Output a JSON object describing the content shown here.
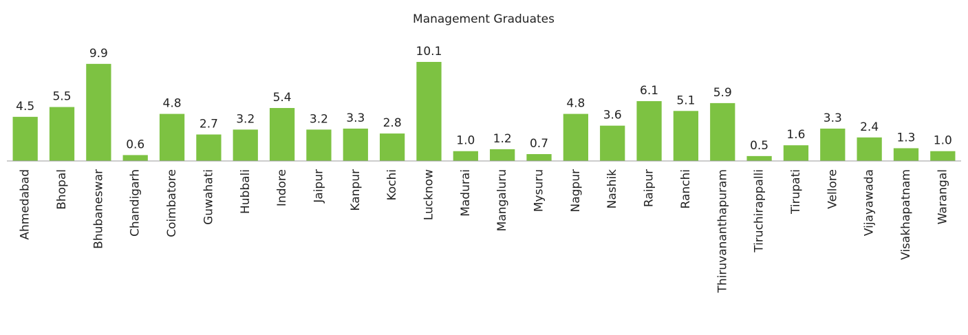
{
  "chart_data": {
    "type": "bar",
    "title": "Management Graduates",
    "categories": [
      "Ahmedabad",
      "Bhopal",
      "Bhubaneswar",
      "Chandigarh",
      "Coimbatore",
      "Guwahati",
      "Hubbali",
      "Indore",
      "Jaipur",
      "Kanpur",
      "Kochi",
      "Lucknow",
      "Madurai",
      "Mangaluru",
      "Mysuru",
      "Nagpur",
      "Nashik",
      "Raipur",
      "Ranchi",
      "Thiruvananthapuram",
      "Tiruchirappalli",
      "Tirupati",
      "Vellore",
      "Vijayawada",
      "Visakhapatnam",
      "Warangal"
    ],
    "values": [
      4.5,
      5.5,
      9.9,
      0.6,
      4.8,
      2.7,
      3.2,
      5.4,
      3.2,
      3.3,
      2.8,
      10.1,
      1.0,
      1.2,
      0.7,
      4.8,
      3.6,
      6.1,
      5.1,
      5.9,
      0.5,
      1.6,
      3.3,
      2.4,
      1.3,
      1.0
    ],
    "value_labels": [
      "4.5",
      "5.5",
      "9.9",
      "0.6",
      "4.8",
      "2.7",
      "3.2",
      "5.4",
      "3.2",
      "3.3",
      "2.8",
      "10.1",
      "1.0",
      "1.2",
      "0.7",
      "4.8",
      "3.6",
      "6.1",
      "5.1",
      "5.9",
      "0.5",
      "1.6",
      "3.3",
      "2.4",
      "1.3",
      "1.0"
    ],
    "color": "#7dc242"
  }
}
